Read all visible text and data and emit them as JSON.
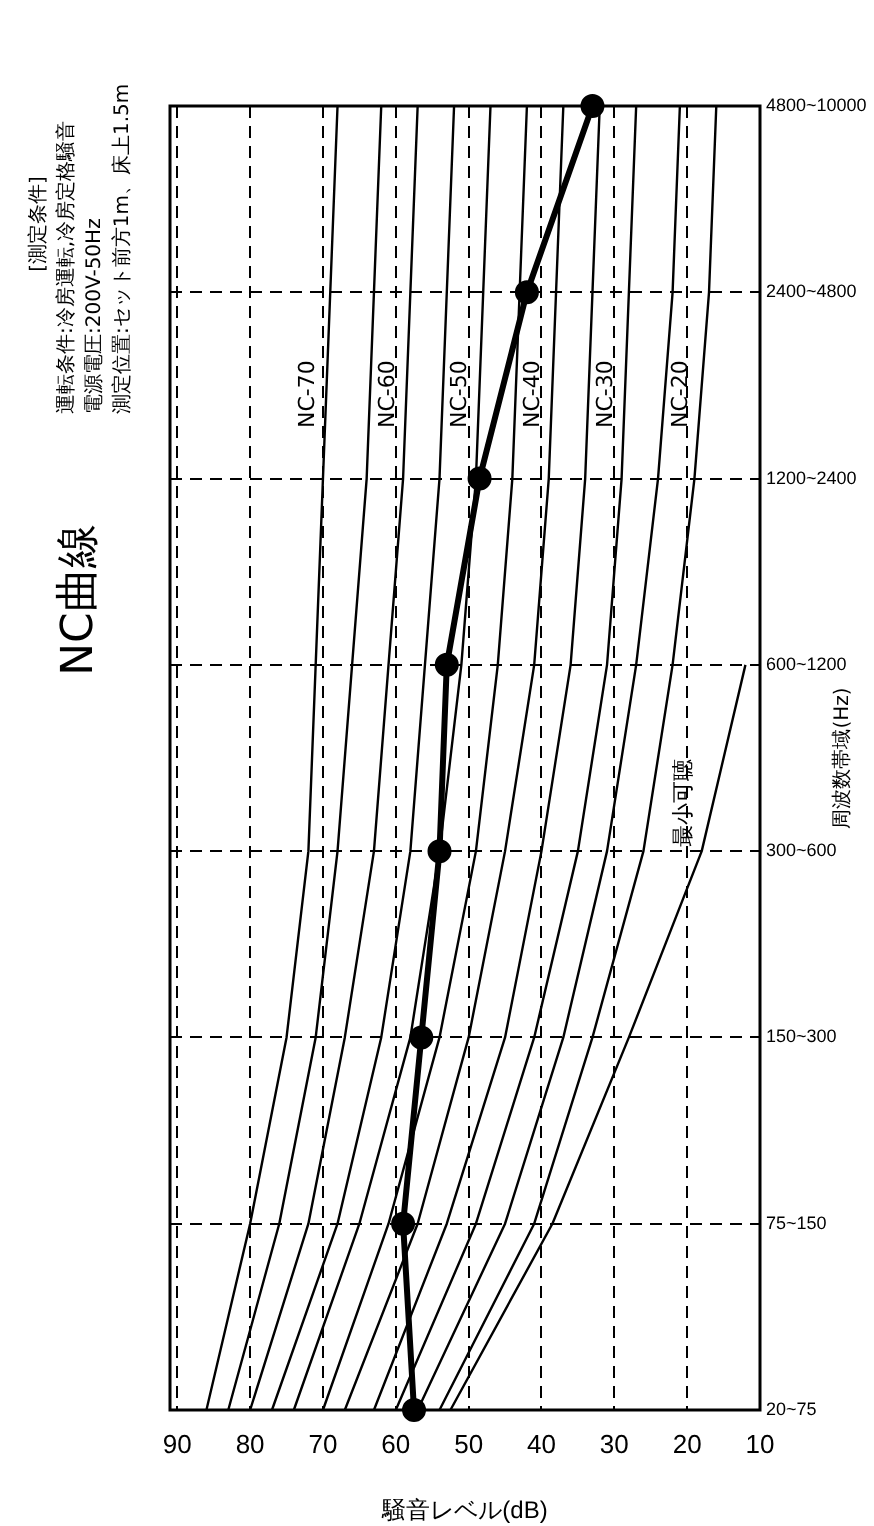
{
  "chart_data": {
    "type": "line",
    "title": "NC曲線",
    "orientation": "horizontal",
    "xlabel": "騒音レベル(dB)",
    "ylabel": "周波数帯域(Hz)",
    "annotations": [
      "[測定条件]",
      "運転条件:冷房運転,冷房定格騒音",
      "電源電圧:200V-50Hz",
      "測定位置:セット前方1m、床上1.5m"
    ],
    "categories": [
      "4800~10000",
      "2400~4800",
      "1200~2400",
      "600~1200",
      "300~600",
      "150~300",
      "75~150",
      "20~75"
    ],
    "xlim": [
      91,
      10
    ],
    "xticks": [
      90,
      80,
      70,
      60,
      50,
      40,
      30,
      20,
      10
    ],
    "grid": true,
    "legend": false,
    "line_style": "solid",
    "series": [
      {
        "name": "NC-70",
        "color": "#000000",
        "values": [
          68,
          69,
          70,
          71,
          72,
          75,
          80,
          86
        ]
      },
      {
        "color": "#000000",
        "values": [
          62,
          63,
          64,
          66,
          68,
          71,
          76,
          83
        ]
      },
      {
        "name": "NC-60",
        "color": "#000000",
        "values": [
          57,
          58,
          59,
          61,
          63,
          67,
          72,
          80
        ]
      },
      {
        "color": "#000000",
        "values": [
          52,
          53,
          54,
          56,
          58,
          62,
          68,
          77
        ]
      },
      {
        "name": "NC-50",
        "color": "#000000",
        "values": [
          47,
          48,
          49,
          51,
          54,
          58,
          65,
          74
        ]
      },
      {
        "color": "#000000",
        "values": [
          42,
          43,
          44,
          46,
          49,
          54,
          61,
          70
        ]
      },
      {
        "name": "NC-40",
        "color": "#000000",
        "values": [
          37,
          38,
          39,
          41,
          45,
          50,
          57,
          67
        ]
      },
      {
        "color": "#000000",
        "values": [
          32,
          33,
          34,
          36,
          40,
          45,
          53,
          63
        ]
      },
      {
        "name": "NC-30",
        "color": "#000000",
        "values": [
          27,
          28,
          29,
          31,
          35,
          41,
          49,
          60
        ]
      },
      {
        "color": "#000000",
        "values": [
          21,
          22,
          24,
          27,
          31,
          37,
          45,
          57
        ]
      },
      {
        "name": "NC-20",
        "color": "#000000",
        "values": [
          16,
          17,
          19,
          22,
          26,
          33,
          41,
          54
        ]
      },
      {
        "name": "最小可聴",
        "color": "#000000",
        "values": [
          null,
          null,
          null,
          12,
          18,
          28,
          38.5,
          52.5
        ]
      },
      {
        "color": "#000000",
        "marker": "circle",
        "values": [
          33,
          42,
          48.5,
          53,
          54,
          56.5,
          59,
          57.5
        ]
      }
    ]
  }
}
